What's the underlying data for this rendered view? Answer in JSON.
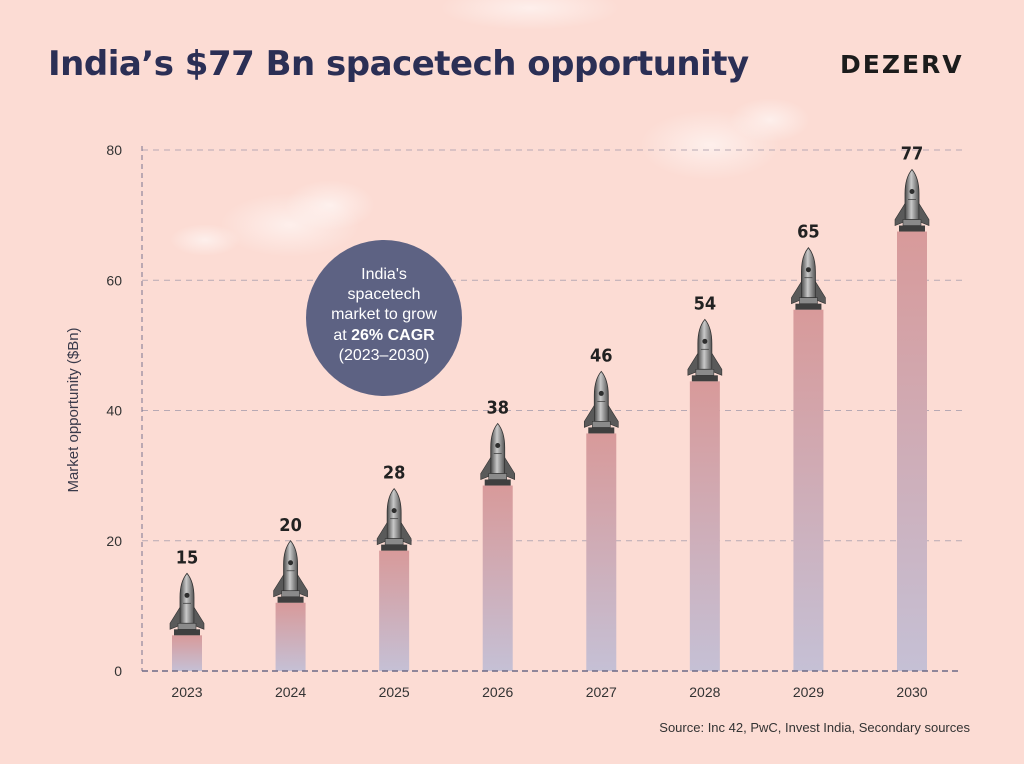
{
  "header": {
    "title": "India’s $77 Bn spacetech opportunity",
    "brand": "DEZERV"
  },
  "callout": {
    "line1": "India's",
    "line2": "spacetech",
    "line3": "market to grow",
    "line4_prefix": "at ",
    "line4_bold": "26% CAGR",
    "line5": "(2023–2030)"
  },
  "footer": {
    "source": "Source: Inc 42, PwC, Invest India, Secondary sources"
  },
  "colors": {
    "background": "#fcdcd4",
    "bar_top": "#d79c9c",
    "bar_bottom": "#c6bfd4",
    "callout": "#5d6283",
    "title": "#2b2f55"
  },
  "chart_data": {
    "type": "bar",
    "categories": [
      "2023",
      "2024",
      "2025",
      "2026",
      "2027",
      "2028",
      "2029",
      "2030"
    ],
    "values": [
      15,
      20,
      28,
      38,
      46,
      54,
      65,
      77
    ],
    "ylabel": "Market opportunity ($Bn)",
    "xlabel": "",
    "ylim": [
      0,
      80
    ],
    "yticks": [
      0,
      20,
      40,
      60,
      80
    ],
    "grid": true,
    "legend": "none"
  }
}
